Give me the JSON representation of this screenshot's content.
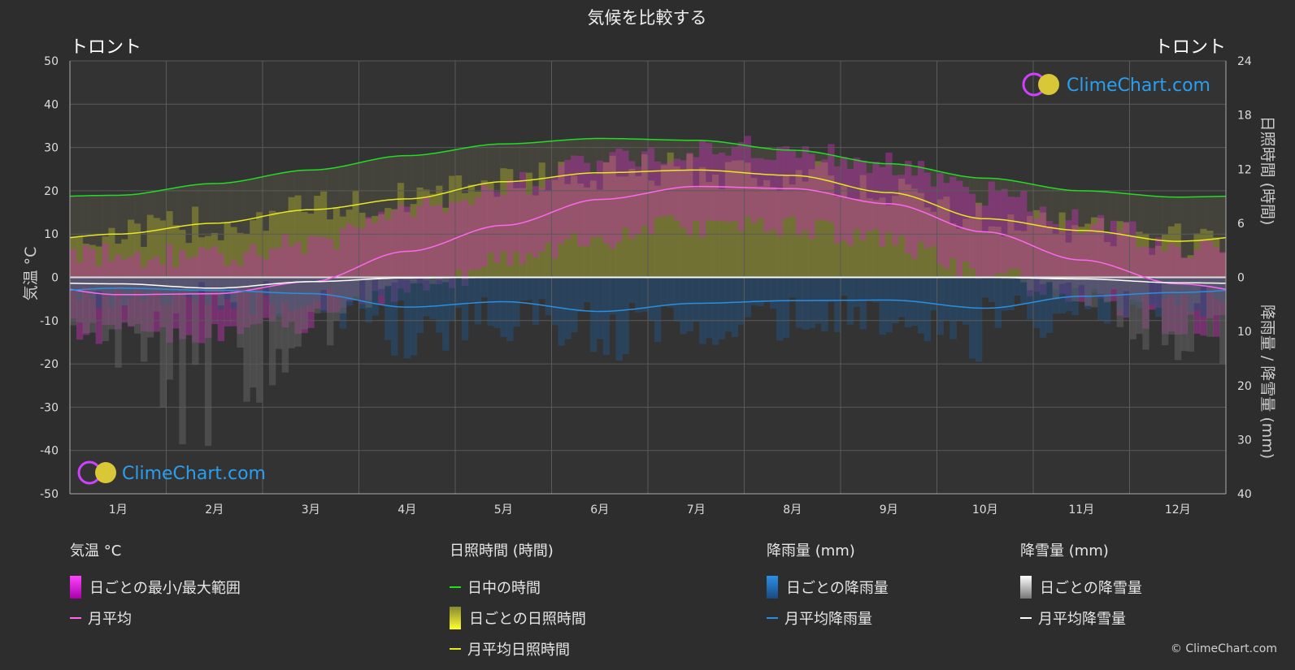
{
  "title": "気候を比較する",
  "location_left": "トロント",
  "location_right": "トロント",
  "left_axis_label": "気温 °C",
  "right_axis_label_top": "日照時間 (時間)",
  "right_axis_label_bottom": "降雨量 / 降雪量 (mm)",
  "watermark": "ClimeChart.com",
  "copyright": "© ClimeChart.com",
  "chart_data": {
    "type": "area",
    "months": [
      "1月",
      "2月",
      "3月",
      "4月",
      "5月",
      "6月",
      "7月",
      "8月",
      "9月",
      "10月",
      "11月",
      "12月"
    ],
    "temp_axis": {
      "ticks": [
        50,
        40,
        30,
        20,
        10,
        0,
        -10,
        -20,
        -30,
        -40,
        -50
      ],
      "ylim": [
        -50,
        50
      ]
    },
    "sun_axis": {
      "ticks": [
        24,
        18,
        12,
        6,
        0
      ],
      "ylim": [
        0,
        24
      ]
    },
    "precip_axis": {
      "ticks": [
        0,
        10,
        20,
        30,
        40
      ],
      "ylim": [
        0,
        40
      ],
      "inverted": true
    },
    "series": [
      {
        "name": "日中の時間",
        "color": "#22dd22",
        "axis": "sun",
        "values": [
          9.1,
          10.4,
          11.9,
          13.5,
          14.8,
          15.4,
          15.2,
          14.1,
          12.6,
          11.0,
          9.6,
          8.9
        ]
      },
      {
        "name": "月平均日照時間",
        "color": "#e8e820",
        "axis": "sun",
        "values": [
          4.8,
          6.0,
          7.5,
          8.7,
          10.6,
          11.6,
          11.9,
          11.3,
          9.4,
          6.5,
          5.2,
          4.0
        ]
      },
      {
        "name": "月平均",
        "color": "#ff66ee",
        "axis": "temp",
        "values": [
          -4.0,
          -3.8,
          -1.0,
          6.0,
          12.0,
          18.0,
          21.0,
          20.5,
          17.0,
          10.5,
          4.0,
          -1.5
        ]
      },
      {
        "name": "月平均降雨量",
        "color": "#2a8fe0",
        "axis": "precip",
        "values": [
          2.0,
          2.4,
          3.0,
          5.5,
          4.5,
          6.3,
          4.8,
          4.3,
          4.2,
          5.7,
          3.5,
          2.8
        ]
      },
      {
        "name": "月平均降雪量",
        "color": "#ffffff",
        "axis": "precip",
        "values": [
          1.2,
          2.0,
          0.8,
          0.1,
          0.0,
          0.0,
          0.0,
          0.0,
          0.0,
          0.0,
          0.3,
          1.0
        ]
      }
    ]
  },
  "legend": {
    "temp": {
      "header": "気温 °C",
      "range": "日ごとの最小/最大範囲",
      "avg": "月平均"
    },
    "sun": {
      "header": "日照時間 (時間)",
      "daylight": "日中の時間",
      "daily": "日ごとの日照時間",
      "avg": "月平均日照時間"
    },
    "rain": {
      "header": "降雨量 (mm)",
      "daily": "日ごとの降雨量",
      "avg": "月平均降雨量"
    },
    "snow": {
      "header": "降雪量 (mm)",
      "daily": "日ごとの降雪量",
      "avg": "月平均降雪量"
    }
  },
  "colors": {
    "temp_range": "#e020d0",
    "sun_daily": "#d8d840",
    "rain_daily": "#2a8fe0",
    "snow_daily": "#dddddd"
  }
}
